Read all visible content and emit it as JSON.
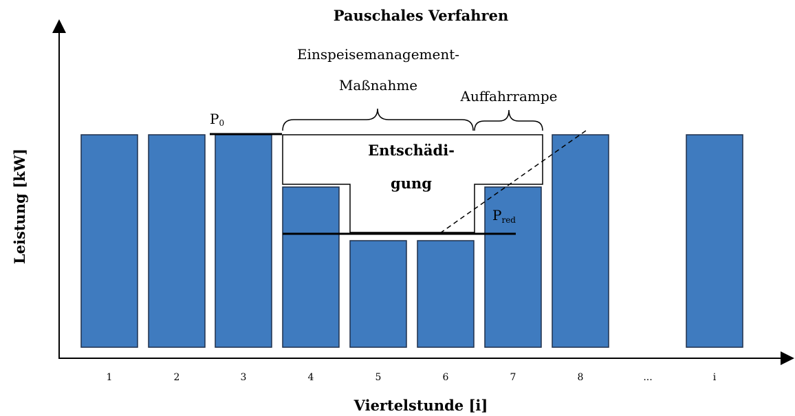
{
  "title": "Pauschales Verfahren",
  "y_axis_label": "Leistung [kW]",
  "x_axis_label": "Viertelstunde [i]",
  "categories": [
    "1",
    "2",
    "3",
    "4",
    "5",
    "6",
    "7",
    "8",
    "...",
    "i"
  ],
  "annotations": {
    "measure": [
      "Einspeisemanagement-",
      "Maßnahme"
    ],
    "ramp": "Auffahrrampe",
    "compensation": [
      "Entschädi-",
      "gung"
    ],
    "p0": {
      "text": "P",
      "subscript": "0"
    },
    "pred": {
      "text": "P",
      "subscript": "red"
    }
  }
}
